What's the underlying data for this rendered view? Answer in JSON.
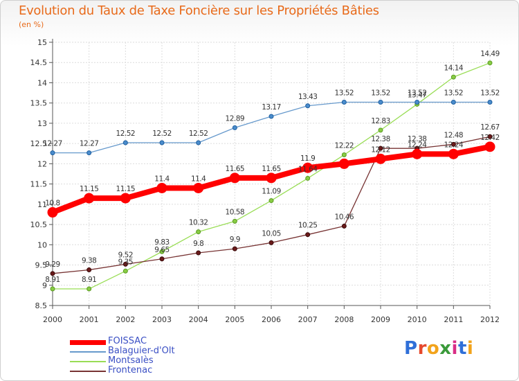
{
  "chart_data": {
    "type": "line",
    "title": "Evolution du Taux de Taxe Foncière sur les Propriétés Bâties",
    "ylabel": "(en %)",
    "xlabel": "",
    "categories": [
      "2000",
      "2001",
      "2002",
      "2003",
      "2004",
      "2005",
      "2006",
      "2007",
      "2008",
      "2009",
      "2010",
      "2011",
      "2012"
    ],
    "yticks": [
      "8.5",
      "9",
      "9.5",
      "10",
      "10.5",
      "11",
      "11.5",
      "12",
      "12.5",
      "13",
      "13.5",
      "14",
      "14.5",
      "15"
    ],
    "ylim": [
      8.5,
      15
    ],
    "grid": true,
    "series": [
      {
        "name": "FOISSAC",
        "color": "#ff0000",
        "values": [
          10.8,
          11.15,
          11.15,
          11.4,
          11.4,
          11.65,
          11.65,
          11.9,
          12.0,
          12.12,
          12.24,
          12.24,
          12.42
        ],
        "labels": [
          "10.8",
          "11.15",
          "11.15",
          "11.4",
          "11.4",
          "11.65",
          "11.65",
          "11.9",
          "",
          "12.12",
          "12.24",
          "12.24",
          "12.42"
        ]
      },
      {
        "name": "Balaguier-d'Olt",
        "color": "#6699cc",
        "values": [
          12.27,
          12.27,
          12.52,
          12.52,
          12.52,
          12.89,
          13.17,
          13.43,
          13.52,
          13.52,
          13.52,
          13.52,
          13.52
        ],
        "labels": [
          "12.27",
          "12.27",
          "12.52",
          "12.52",
          "12.52",
          "12.89",
          "13.17",
          "13.43",
          "13.52",
          "13.52",
          "13.52",
          "13.52",
          "13.52"
        ]
      },
      {
        "name": "Montsalès",
        "color": "#99dd55",
        "values": [
          8.91,
          8.91,
          9.35,
          9.83,
          10.32,
          10.58,
          11.09,
          11.64,
          12.22,
          12.83,
          13.47,
          14.14,
          14.49
        ],
        "labels": [
          "8.91",
          "8.91",
          "9.35",
          "9.83",
          "10.32",
          "10.58",
          "11.09",
          "11.64",
          "12.22",
          "12.83",
          "13.47",
          "14.14",
          "14.49"
        ]
      },
      {
        "name": "Frontenac",
        "color": "#773333",
        "values": [
          9.29,
          9.38,
          9.52,
          9.65,
          9.8,
          9.9,
          10.05,
          10.25,
          10.46,
          12.38,
          12.38,
          12.48,
          12.67
        ],
        "labels": [
          "9.29",
          "9.38",
          "9.52",
          "9.65",
          "9.8",
          "9.9",
          "10.05",
          "10.25",
          "10.46",
          "12.38",
          "12.38",
          "12.48",
          "12.67"
        ]
      }
    ],
    "legend_position": "bottom-left"
  },
  "brand": {
    "text": "Proxiti",
    "letters": [
      "P",
      "r",
      "o",
      "x",
      "i",
      "t",
      "i"
    ],
    "colors": [
      "#2f6fd8",
      "#e6492d",
      "#f2a31b",
      "#3a9a3a",
      "#d92e86",
      "#2f6fd8",
      "#f2a31b"
    ]
  }
}
